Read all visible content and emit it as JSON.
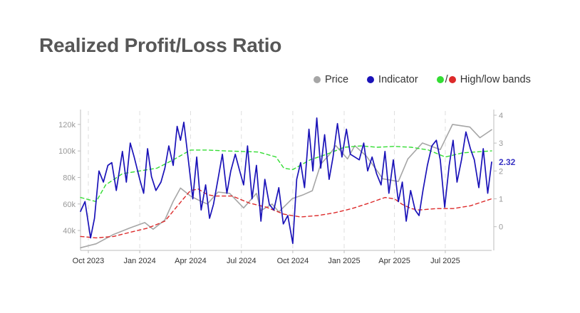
{
  "title": "Realized Profit/Loss Ratio",
  "legend": {
    "price": "Price",
    "indicator": "Indicator",
    "bands_separator": "/",
    "bands": "High/low bands"
  },
  "colors": {
    "price": "#a6a6a6",
    "indicator": "#1a12b8",
    "high_band": "#33dd33",
    "low_band": "#dd2a2a",
    "title": "#575757",
    "axis_text": "#999999"
  },
  "chart_data": {
    "type": "line",
    "x_unit": "month",
    "x_ticks": [
      {
        "label": "Oct 2023",
        "x": "2023-10"
      },
      {
        "label": "Jan 2024",
        "x": "2024-01"
      },
      {
        "label": "Apr 2024",
        "x": "2024-04"
      },
      {
        "label": "Jul 2024",
        "x": "2024-07"
      },
      {
        "label": "Oct 2024",
        "x": "2024-10"
      },
      {
        "label": "Jan 2025",
        "x": "2025-01"
      },
      {
        "label": "Apr 2025",
        "x": "2025-04"
      },
      {
        "label": "Jul 2025",
        "x": "2025-07"
      }
    ],
    "xlim": [
      "2023-09-17",
      "2025-09-22"
    ],
    "y_left": {
      "ticks": [
        "40k",
        "60k",
        "80k",
        "100k",
        "120k"
      ],
      "values": [
        40000,
        60000,
        80000,
        100000,
        120000
      ],
      "ylim": [
        25000,
        128000
      ]
    },
    "y_right": {
      "ticks": [
        "0",
        "1",
        "2",
        "3",
        "4"
      ],
      "values": [
        0,
        1,
        2,
        3,
        4
      ],
      "ylim": [
        -0.85,
        4.05
      ]
    },
    "last_value_label": "2.32",
    "grid": "vertical-dashed",
    "legend_position": "top-right",
    "series": [
      {
        "key": "price",
        "axis": "left",
        "x": [
          "2023-09-17",
          "2023-10-15",
          "2023-11-15",
          "2023-12-15",
          "2024-01-10",
          "2024-01-25",
          "2024-02-15",
          "2024-03-01",
          "2024-03-14",
          "2024-04-01",
          "2024-04-15",
          "2024-05-01",
          "2024-05-20",
          "2024-06-10",
          "2024-07-05",
          "2024-07-28",
          "2024-08-05",
          "2024-08-25",
          "2024-09-06",
          "2024-09-30",
          "2024-10-20",
          "2024-11-05",
          "2024-11-20",
          "2024-12-05",
          "2024-12-17",
          "2025-01-07",
          "2025-01-20",
          "2025-02-10",
          "2025-03-01",
          "2025-03-11",
          "2025-04-08",
          "2025-04-25",
          "2025-05-21",
          "2025-06-22",
          "2025-07-14",
          "2025-08-14",
          "2025-09-01",
          "2025-09-22"
        ],
        "y": [
          27000,
          30000,
          37000,
          42000,
          46000,
          41000,
          48000,
          62000,
          72000,
          66000,
          63000,
          60000,
          69000,
          68000,
          57000,
          68000,
          55000,
          60000,
          54000,
          64000,
          67000,
          70000,
          90000,
          97000,
          104000,
          94000,
          104000,
          96000,
          85000,
          79000,
          77000,
          94000,
          106000,
          101000,
          120000,
          118000,
          110000,
          116000
        ]
      },
      {
        "key": "indicator",
        "axis": "right",
        "x": [
          "2023-09-17",
          "2023-09-25",
          "2023-10-05",
          "2023-10-12",
          "2023-10-20",
          "2023-10-28",
          "2023-11-05",
          "2023-11-12",
          "2023-11-20",
          "2023-12-01",
          "2023-12-08",
          "2023-12-15",
          "2023-12-22",
          "2024-01-01",
          "2024-01-08",
          "2024-01-15",
          "2024-01-22",
          "2024-01-30",
          "2024-02-08",
          "2024-02-15",
          "2024-02-22",
          "2024-03-01",
          "2024-03-08",
          "2024-03-14",
          "2024-03-20",
          "2024-03-28",
          "2024-04-05",
          "2024-04-12",
          "2024-04-20",
          "2024-04-28",
          "2024-05-05",
          "2024-05-12",
          "2024-05-20",
          "2024-05-28",
          "2024-06-05",
          "2024-06-12",
          "2024-06-20",
          "2024-06-28",
          "2024-07-05",
          "2024-07-12",
          "2024-07-20",
          "2024-07-28",
          "2024-08-05",
          "2024-08-12",
          "2024-08-20",
          "2024-08-28",
          "2024-09-06",
          "2024-09-14",
          "2024-09-22",
          "2024-10-01",
          "2024-10-08",
          "2024-10-15",
          "2024-10-22",
          "2024-10-30",
          "2024-11-06",
          "2024-11-13",
          "2024-11-20",
          "2024-11-27",
          "2024-12-05",
          "2024-12-12",
          "2024-12-20",
          "2024-12-28",
          "2025-01-05",
          "2025-01-12",
          "2025-01-20",
          "2025-01-28",
          "2025-02-05",
          "2025-02-12",
          "2025-02-20",
          "2025-02-28",
          "2025-03-08",
          "2025-03-15",
          "2025-03-22",
          "2025-03-30",
          "2025-04-08",
          "2025-04-15",
          "2025-04-22",
          "2025-04-30",
          "2025-05-08",
          "2025-05-15",
          "2025-05-22",
          "2025-05-30",
          "2025-06-07",
          "2025-06-15",
          "2025-06-22",
          "2025-06-30",
          "2025-07-08",
          "2025-07-15",
          "2025-07-22",
          "2025-07-30",
          "2025-08-07",
          "2025-08-15",
          "2025-08-22",
          "2025-08-30",
          "2025-09-07",
          "2025-09-15",
          "2025-09-22"
        ],
        "y": [
          0.55,
          0.9,
          -0.4,
          0.3,
          2.0,
          1.6,
          2.2,
          2.3,
          1.3,
          2.7,
          1.6,
          3.0,
          2.5,
          1.7,
          1.2,
          2.8,
          1.8,
          1.3,
          1.6,
          2.1,
          2.9,
          2.2,
          3.6,
          3.1,
          3.75,
          2.4,
          1.0,
          2.5,
          0.6,
          1.5,
          0.3,
          0.8,
          1.7,
          2.6,
          1.2,
          2.0,
          2.6,
          2.0,
          1.5,
          2.9,
          1.0,
          2.2,
          0.2,
          1.7,
          0.8,
          0.6,
          1.4,
          0.1,
          0.4,
          -0.6,
          1.7,
          2.3,
          1.4,
          3.5,
          2.0,
          3.9,
          2.1,
          3.3,
          1.7,
          2.5,
          3.7,
          2.5,
          3.5,
          2.6,
          2.5,
          2.4,
          3.0,
          2.0,
          2.5,
          1.9,
          1.5,
          2.7,
          1.2,
          2.4,
          0.9,
          1.6,
          0.2,
          1.3,
          0.6,
          0.4,
          1.3,
          2.2,
          2.9,
          3.1,
          2.4,
          0.7,
          2.2,
          3.1,
          1.6,
          2.4,
          3.4,
          2.8,
          2.4,
          1.4,
          2.8,
          1.2,
          2.32
        ]
      },
      {
        "key": "high_band",
        "axis": "right",
        "x": [
          "2023-09-17",
          "2023-10-15",
          "2023-11-01",
          "2023-12-01",
          "2024-01-01",
          "2024-02-01",
          "2024-03-01",
          "2024-04-01",
          "2024-05-01",
          "2024-06-01",
          "2024-07-01",
          "2024-08-01",
          "2024-09-01",
          "2024-09-15",
          "2024-10-01",
          "2024-11-01",
          "2024-12-01",
          "2025-01-01",
          "2025-02-01",
          "2025-03-01",
          "2025-04-01",
          "2025-05-01",
          "2025-06-01",
          "2025-07-01",
          "2025-08-01",
          "2025-09-22"
        ],
        "y": [
          1.05,
          0.9,
          1.5,
          1.9,
          2.0,
          2.1,
          2.4,
          2.75,
          2.75,
          2.72,
          2.7,
          2.68,
          2.5,
          2.1,
          2.05,
          2.4,
          2.6,
          2.85,
          2.9,
          2.85,
          2.88,
          2.85,
          2.75,
          2.5,
          2.65,
          2.72
        ]
      },
      {
        "key": "low_band",
        "axis": "right",
        "x": [
          "2023-09-17",
          "2023-10-15",
          "2023-11-15",
          "2023-12-15",
          "2024-01-15",
          "2024-02-15",
          "2024-03-15",
          "2024-04-01",
          "2024-04-15",
          "2024-05-01",
          "2024-05-15",
          "2024-06-15",
          "2024-07-15",
          "2024-08-15",
          "2024-09-15",
          "2024-10-15",
          "2024-11-15",
          "2024-12-15",
          "2025-01-15",
          "2025-02-15",
          "2025-03-15",
          "2025-04-01",
          "2025-04-15",
          "2025-05-01",
          "2025-05-15",
          "2025-06-15",
          "2025-07-15",
          "2025-08-15",
          "2025-09-22"
        ],
        "y": [
          -0.35,
          -0.4,
          -0.35,
          -0.2,
          -0.05,
          0.2,
          0.9,
          1.3,
          1.35,
          1.15,
          1.1,
          1.1,
          0.85,
          0.7,
          0.45,
          0.35,
          0.4,
          0.5,
          0.65,
          0.85,
          1.05,
          1.0,
          0.8,
          0.65,
          0.6,
          0.65,
          0.65,
          0.75,
          1.0
        ]
      }
    ]
  }
}
